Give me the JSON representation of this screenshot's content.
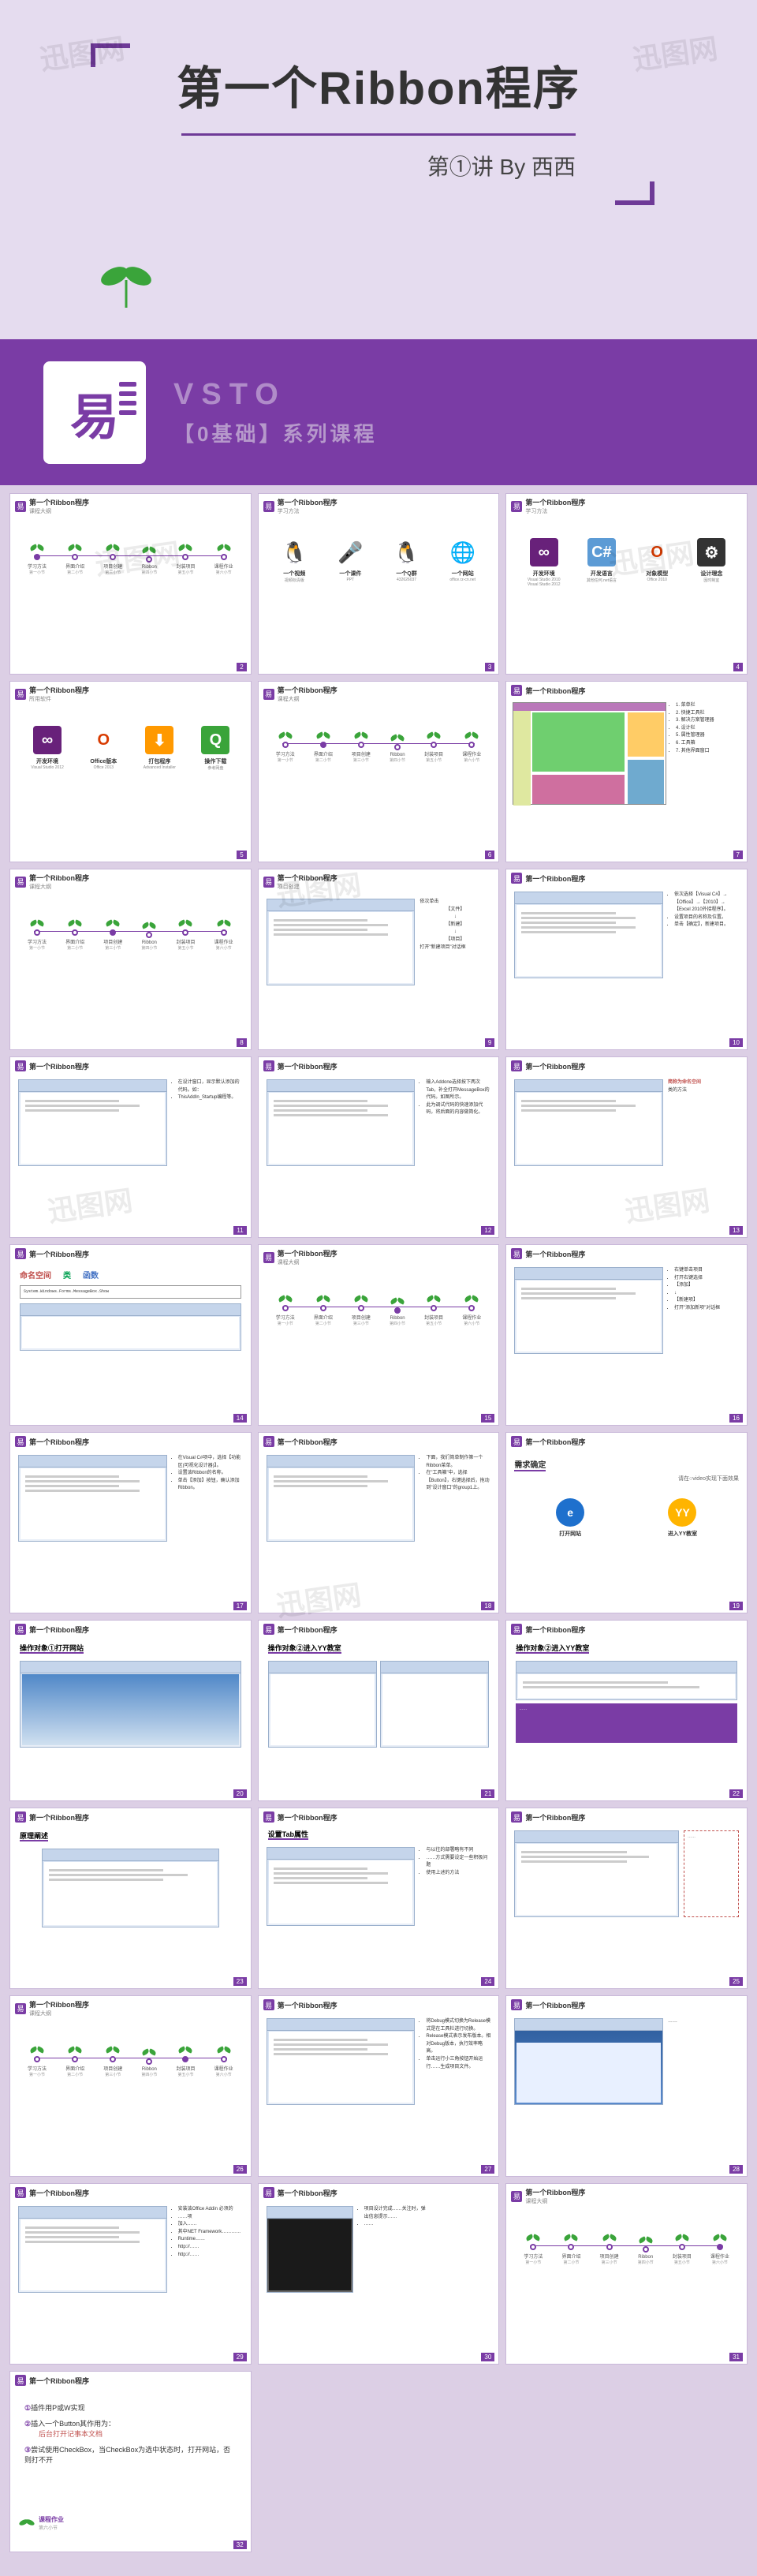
{
  "colors": {
    "bg": "#dccfe5",
    "title_bg": "#e5dcef",
    "purple": "#7a3ca5",
    "purple_dark": "#6e3a97",
    "purple_light": "#b08cc9",
    "purple_lighter": "#b699cb",
    "leaf_green": "#3aa43a",
    "red": "#c0504d",
    "orange": "#d87b1c",
    "vs_purple": "#68217a",
    "cs_blue": "#5c9bd5",
    "office_orange": "#d83b01"
  },
  "watermark": "迅图网",
  "title_slide": {
    "main": "第一个Ribbon程序",
    "sub": "第①讲  By 西西"
  },
  "banner": {
    "logo_char": "易",
    "line1": "VSTO",
    "line2": "【0基础】系列课程"
  },
  "slide_header_title": "第一个Ribbon程序",
  "timeline_steps": [
    {
      "label": "学习方法",
      "sub": "第一小节"
    },
    {
      "label": "界面介绍",
      "sub": "第二小节"
    },
    {
      "label": "项目创建",
      "sub": "第三小节"
    },
    {
      "label": "Ribbon",
      "sub": "第四小节"
    },
    {
      "label": "封装项目",
      "sub": "第五小节"
    },
    {
      "label": "课程作业",
      "sub": "第六小节"
    }
  ],
  "slide3_items": [
    {
      "label": "一个视频",
      "sub": "视频标清版"
    },
    {
      "label": "一个课件",
      "sub": "PPT"
    },
    {
      "label": "一个Q群",
      "sub": "432626037"
    },
    {
      "label": "一个网站",
      "sub": "office.rz-cn.net"
    }
  ],
  "slide4_items": [
    {
      "label": "开发环境",
      "sub": "Visual Studio 2010\nVisual Studio 2012",
      "bg": "#68217a",
      "glyph": "∞"
    },
    {
      "label": "开发语言",
      "sub": "其他任何.net语言",
      "bg": "#5c9bd5",
      "glyph": "C#"
    },
    {
      "label": "对象模型",
      "sub": "Office 2010",
      "bg": "#ffffff",
      "glyph": "O"
    },
    {
      "label": "设计理念",
      "sub": "因时制宜",
      "bg": "#333",
      "glyph": "⚙"
    }
  ],
  "slide5_items": [
    {
      "label": "开发环境",
      "sub": "Visual Studio 2012",
      "bg": "#68217a",
      "glyph": "∞"
    },
    {
      "label": "Office版本",
      "sub": "Office 2013",
      "bg": "#ffffff",
      "glyph": "O"
    },
    {
      "label": "打包程序",
      "sub": "Advanced Installer",
      "bg": "#f90",
      "glyph": "⬇"
    },
    {
      "label": "操作下载",
      "sub": "参考网盘",
      "bg": "#3aa43a",
      "glyph": "Q"
    }
  ],
  "slide7_panels": {
    "colors": [
      "#b978b9",
      "#6fcf6f",
      "#ffcc66",
      "#6faacf",
      "#cf6f9f",
      "#dfe8a0"
    ],
    "legend": [
      "1. 菜单栏",
      "2. 快捷工具栏",
      "3. 解决方案管理器",
      "4. 设计栏",
      "5. 属性管理器",
      "6. 工具箱",
      "7. 其他界面窗口"
    ]
  },
  "slide9_text": {
    "intro": "依次单击",
    "steps": [
      "【文件】",
      "↓",
      "【新建】",
      "↓",
      "【项目】"
    ],
    "result": "打开\"新建项目\"对话框"
  },
  "slide10_text": [
    "依次选择【Visual C#】→【Office】→【2010】→【Excel 2010外接程序】。",
    "设置项目的名称及位置。",
    "单击【确定】，新建项目。"
  ],
  "slide11_text": [
    "在设计窗口，显示默认添加的代码。如：",
    "ThisAddIn_Startup编程等。"
  ],
  "slide12_text": [
    "输入Addone选择按下两次Tab，补全打开MessageBox的代码。如图所示。",
    "此为调试代码的快速添加代码，将后面的内容做简化。"
  ],
  "slide13_text": {
    "title": "简称为命名空间",
    "sub": "类的方法"
  },
  "slide14": {
    "heading_cn": "命名空间  类  函数",
    "heading_colors": [
      "#c0504d",
      "#00a050",
      "#4472c4"
    ],
    "code": "System.Windows.Forms.MessageBox.Show"
  },
  "slide16_text": [
    "右键单击项目",
    "打开右键选择",
    "【添加】",
    "↓",
    "【新建项】",
    "打开\"添加新项\"对话框"
  ],
  "slide17_text": [
    "在Visual C#项中，选择【功能区(可视化设计器)】。",
    "设置该Ribbon的名称。",
    "单击【添加】按钮，确认添加Ribbon。"
  ],
  "slide18_text": [
    "下面，我们简单制作第一个Ribbon菜单。",
    "在\"工具箱\"中，选择【Button】，右键选择后，拖动到\"设计窗口\"的group1上。"
  ],
  "slide19": {
    "title": "需求确定",
    "note": "请在○video实现下面效果",
    "items": [
      {
        "label": "打开网站",
        "glyph": "e",
        "bg": "#1e70cd"
      },
      {
        "label": "进入YY教室",
        "glyph": "YY",
        "bg": "#ffb400"
      }
    ]
  },
  "slide20": {
    "title": "操作对象①打开网站"
  },
  "slide21": {
    "title": "操作对象②进入YY教室"
  },
  "slide22": {
    "title": "操作对象②进入YY教室"
  },
  "slide23": {
    "title": "原理阐述"
  },
  "slide24": {
    "title": "设置Tab属性"
  },
  "slide25_text": [
    "与以往的部署略有不同",
    "……方式需要设定一些积极问题",
    "使用上述的方法"
  ],
  "slide27_text": [
    "将Debug模式切换为Release模式是在工具栏进行切换。",
    "Release模式表示发布版本。相对Debug版本，执行效率略高。",
    "单击运行小三角按钮开始运行……生成项目文件。"
  ],
  "slide29_text": [
    "安装该Office Addin 必须的",
    "……项",
    "加入……",
    "其中NET Framework…………",
    "Runtime……",
    "http://……",
    "http://……"
  ],
  "slide30_text": [
    "项目设计完成……关注时，弹出信息提示……",
    "……"
  ],
  "slide32_hw": {
    "section_label": "课程作业",
    "section_sub": "第六小节",
    "lines": [
      {
        "num": "①",
        "text": "插件用P或W实现"
      },
      {
        "num": "②",
        "text": "插入一个Button其作用为：",
        "sub": "后台打开记事本文档"
      },
      {
        "num": "③",
        "text": "尝试使用CheckBox，当CheckBox为选中状态时，打开网站，否则打不开"
      }
    ]
  },
  "subtitles": {
    "s2": "课程大纲",
    "s3": "学习方法",
    "s4": "学习方法",
    "s5": "所用软件",
    "s6": "课程大纲",
    "s8": "课程大纲",
    "s9": "项目创建",
    "s15": "课程大纲",
    "s26": "课程大纲",
    "s31": "课程大纲"
  }
}
